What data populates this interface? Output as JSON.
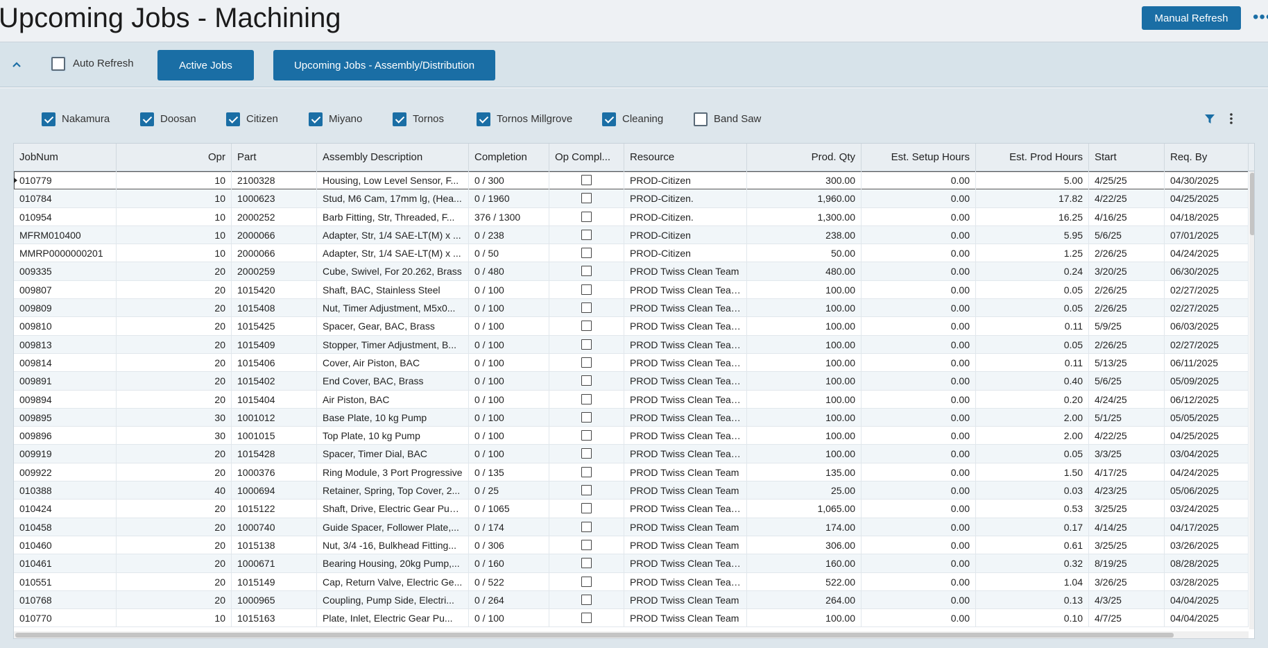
{
  "header": {
    "title": "Upcoming Jobs - Machining",
    "manual_refresh_label": "Manual Refresh",
    "more_icon": "more-horizontal-icon"
  },
  "toolbar": {
    "collapse_icon": "chevron-up-icon",
    "auto_refresh_label": "Auto Refresh",
    "auto_refresh_checked": false,
    "active_jobs_label": "Active Jobs",
    "upcoming_assembly_label": "Upcoming Jobs - Assembly/Distribution"
  },
  "filters": [
    {
      "label": "Nakamura",
      "checked": true
    },
    {
      "label": "Doosan",
      "checked": true
    },
    {
      "label": "Citizen",
      "checked": true
    },
    {
      "label": "Miyano",
      "checked": true
    },
    {
      "label": "Tornos",
      "checked": true
    },
    {
      "label": "Tornos Millgrove",
      "checked": true
    },
    {
      "label": "Cleaning",
      "checked": true
    },
    {
      "label": "Band Saw",
      "checked": false
    }
  ],
  "grid": {
    "columns": [
      "JobNum",
      "Opr",
      "Part",
      "Assembly Description",
      "Completion",
      "Op Compl...",
      "Resource",
      "Prod. Qty",
      "Est. Setup Hours",
      "Est. Prod Hours",
      "Start",
      "Req. By"
    ],
    "rows": [
      [
        "010779",
        "10",
        "2100328",
        "Housing, Low Level Sensor, F...",
        "0 / 300",
        false,
        "PROD-Citizen",
        "300.00",
        "0.00",
        "5.00",
        "4/25/25",
        "04/30/2025"
      ],
      [
        "010784",
        "10",
        "1000623",
        "Stud, M6 Cam, 17mm lg, (Hea...",
        "0 / 1960",
        false,
        "PROD-Citizen.",
        "1,960.00",
        "0.00",
        "17.82",
        "4/22/25",
        "04/25/2025"
      ],
      [
        "010954",
        "10",
        "2000252",
        "Barb Fitting, Str, Threaded, F...",
        "376 / 1300",
        false,
        "PROD-Citizen.",
        "1,300.00",
        "0.00",
        "16.25",
        "4/16/25",
        "04/18/2025"
      ],
      [
        "MFRM010400",
        "10",
        "2000066",
        "Adapter, Str, 1/4 SAE-LT(M) x ...",
        "0 / 238",
        false,
        "PROD-Citizen",
        "238.00",
        "0.00",
        "5.95",
        "5/6/25",
        "07/01/2025"
      ],
      [
        "MMRP0000000201",
        "10",
        "2000066",
        "Adapter, Str, 1/4 SAE-LT(M) x ...",
        "0 / 50",
        false,
        "PROD-Citizen",
        "50.00",
        "0.00",
        "1.25",
        "2/26/25",
        "04/24/2025"
      ],
      [
        "009335",
        "20",
        "2000259",
        "Cube, Swivel, For 20.262, Brass",
        "0 / 480",
        false,
        "PROD Twiss Clean Team",
        "480.00",
        "0.00",
        "0.24",
        "3/20/25",
        "06/30/2025"
      ],
      [
        "009807",
        "20",
        "1015420",
        "Shaft, BAC, Stainless Steel",
        "0 / 100",
        false,
        "PROD Twiss Clean Team.",
        "100.00",
        "0.00",
        "0.05",
        "2/26/25",
        "02/27/2025"
      ],
      [
        "009809",
        "20",
        "1015408",
        "Nut, Timer Adjustment, M5x0...",
        "0 / 100",
        false,
        "PROD Twiss Clean Team.",
        "100.00",
        "0.00",
        "0.05",
        "2/26/25",
        "02/27/2025"
      ],
      [
        "009810",
        "20",
        "1015425",
        "Spacer, Gear, BAC, Brass",
        "0 / 100",
        false,
        "PROD Twiss Clean Team.",
        "100.00",
        "0.00",
        "0.11",
        "5/9/25",
        "06/03/2025"
      ],
      [
        "009813",
        "20",
        "1015409",
        "Stopper, Timer Adjustment, B...",
        "0 / 100",
        false,
        "PROD Twiss Clean Team.",
        "100.00",
        "0.00",
        "0.05",
        "2/26/25",
        "02/27/2025"
      ],
      [
        "009814",
        "20",
        "1015406",
        "Cover, Air Piston, BAC",
        "0 / 100",
        false,
        "PROD Twiss Clean Team.",
        "100.00",
        "0.00",
        "0.11",
        "5/13/25",
        "06/11/2025"
      ],
      [
        "009891",
        "20",
        "1015402",
        "End Cover, BAC, Brass",
        "0 / 100",
        false,
        "PROD Twiss Clean Team.",
        "100.00",
        "0.00",
        "0.40",
        "5/6/25",
        "05/09/2025"
      ],
      [
        "009894",
        "20",
        "1015404",
        "Air Piston, BAC",
        "0 / 100",
        false,
        "PROD Twiss Clean Team.",
        "100.00",
        "0.00",
        "0.20",
        "4/24/25",
        "06/12/2025"
      ],
      [
        "009895",
        "30",
        "1001012",
        "Base Plate, 10 kg Pump",
        "0 / 100",
        false,
        "PROD Twiss Clean Team.",
        "100.00",
        "0.00",
        "2.00",
        "5/1/25",
        "05/05/2025"
      ],
      [
        "009896",
        "30",
        "1001015",
        "Top Plate, 10 kg Pump",
        "0 / 100",
        false,
        "PROD Twiss Clean Team.",
        "100.00",
        "0.00",
        "2.00",
        "4/22/25",
        "04/25/2025"
      ],
      [
        "009919",
        "20",
        "1015428",
        "Spacer, Timer Dial, BAC",
        "0 / 100",
        false,
        "PROD Twiss Clean Team.",
        "100.00",
        "0.00",
        "0.05",
        "3/3/25",
        "03/04/2025"
      ],
      [
        "009922",
        "20",
        "1000376",
        "Ring Module, 3 Port Progressive",
        "0 / 135",
        false,
        "PROD Twiss Clean Team",
        "135.00",
        "0.00",
        "1.50",
        "4/17/25",
        "04/24/2025"
      ],
      [
        "010388",
        "40",
        "1000694",
        "Retainer, Spring, Top Cover, 2...",
        "0 / 25",
        false,
        "PROD Twiss Clean Team",
        "25.00",
        "0.00",
        "0.03",
        "4/23/25",
        "05/06/2025"
      ],
      [
        "010424",
        "20",
        "1015122",
        "Shaft, Drive, Electric Gear Pump",
        "0 / 1065",
        false,
        "PROD Twiss Clean Team.",
        "1,065.00",
        "0.00",
        "0.53",
        "3/25/25",
        "03/24/2025"
      ],
      [
        "010458",
        "20",
        "1000740",
        "Guide Spacer, Follower Plate,...",
        "0 / 174",
        false,
        "PROD Twiss Clean Team",
        "174.00",
        "0.00",
        "0.17",
        "4/14/25",
        "04/17/2025"
      ],
      [
        "010460",
        "20",
        "1015138",
        "Nut, 3/4 -16, Bulkhead Fitting...",
        "0 / 306",
        false,
        "PROD Twiss Clean Team",
        "306.00",
        "0.00",
        "0.61",
        "3/25/25",
        "03/26/2025"
      ],
      [
        "010461",
        "20",
        "1000671",
        "Bearing Housing, 20kg Pump,...",
        "0 / 160",
        false,
        "PROD Twiss Clean Team.",
        "160.00",
        "0.00",
        "0.32",
        "8/19/25",
        "08/28/2025"
      ],
      [
        "010551",
        "20",
        "1015149",
        "Cap, Return Valve, Electric Ge...",
        "0 / 522",
        false,
        "PROD Twiss Clean Team.",
        "522.00",
        "0.00",
        "1.04",
        "3/26/25",
        "03/28/2025"
      ],
      [
        "010768",
        "20",
        "1000965",
        "Coupling, Pump Side, Electri...",
        "0 / 264",
        false,
        "PROD Twiss Clean Team",
        "264.00",
        "0.00",
        "0.13",
        "4/3/25",
        "04/04/2025"
      ],
      [
        "010770",
        "10",
        "1015163",
        "Plate, Inlet, Electric Gear Pu...",
        "0 / 100",
        false,
        "PROD Twiss Clean Team",
        "100.00",
        "0.00",
        "0.10",
        "4/7/25",
        "04/04/2025"
      ]
    ]
  },
  "colors": {
    "accent": "#1a6ea5",
    "header_bg": "#eef1f4",
    "toolbar_bg": "#d7e3ea",
    "alt_row": "#f1f6f9"
  }
}
